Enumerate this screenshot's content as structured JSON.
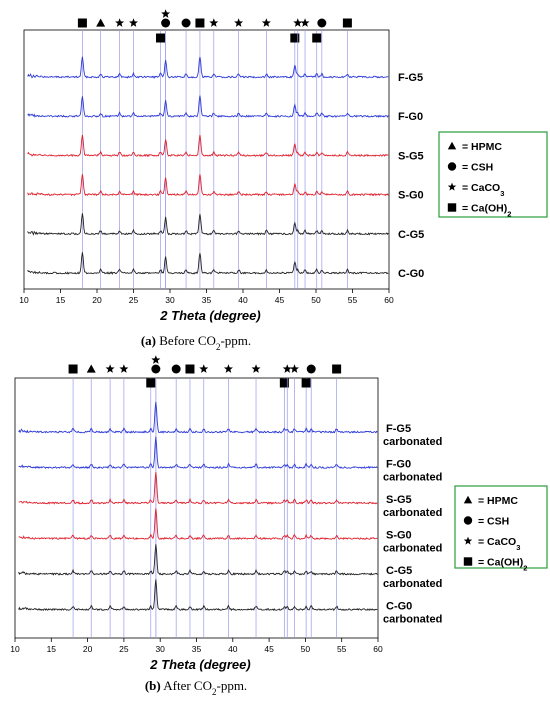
{
  "chart_data": [
    {
      "type": "line",
      "panel": "(a)",
      "caption_label": "(a)",
      "caption_text": " Before CO",
      "caption_sub": "2",
      "caption_tail": "-ppm.",
      "xlabel": "2 Theta (degree)",
      "xlim": [
        10,
        60
      ],
      "xticks": [
        10,
        15,
        20,
        25,
        30,
        35,
        40,
        45,
        50,
        55,
        60
      ],
      "series": [
        {
          "name": "F-G5",
          "color": "#2e3ad6"
        },
        {
          "name": "F-G0",
          "color": "#2e3ad6"
        },
        {
          "name": "S-G5",
          "color": "#e0202c"
        },
        {
          "name": "S-G0",
          "color": "#e0202c"
        },
        {
          "name": "C-G5",
          "color": "#222222"
        },
        {
          "name": "C-G0",
          "color": "#222222"
        }
      ],
      "peaks": [
        18.0,
        29.4,
        34.1,
        47.1
      ],
      "reference_lines": [
        {
          "x": 18.0,
          "marker": "square",
          "row": 0
        },
        {
          "x": 20.5,
          "marker": "triangle",
          "row": 0
        },
        {
          "x": 23.1,
          "marker": "star",
          "row": 0
        },
        {
          "x": 25.0,
          "marker": "star",
          "row": 0
        },
        {
          "x": 28.7,
          "marker": "square",
          "row": 1
        },
        {
          "x": 29.4,
          "marker": "circle",
          "row": 0
        },
        {
          "x": 29.4,
          "marker": "star",
          "row": -1
        },
        {
          "x": 32.2,
          "marker": "circle",
          "row": 0
        },
        {
          "x": 34.1,
          "marker": "square",
          "row": 0
        },
        {
          "x": 36.0,
          "marker": "star",
          "row": 0
        },
        {
          "x": 39.4,
          "marker": "star",
          "row": 0
        },
        {
          "x": 43.2,
          "marker": "star",
          "row": 0
        },
        {
          "x": 47.1,
          "marker": "square",
          "row": 1
        },
        {
          "x": 47.5,
          "marker": "star",
          "row": 0
        },
        {
          "x": 48.5,
          "marker": "star",
          "row": 0
        },
        {
          "x": 50.1,
          "marker": "square",
          "row": 1
        },
        {
          "x": 50.8,
          "marker": "circle",
          "row": 0
        },
        {
          "x": 54.3,
          "marker": "square",
          "row": 0
        }
      ],
      "legend": {
        "placement": "right",
        "border_color": "#2a9d3a",
        "items": [
          {
            "marker": "triangle",
            "label": "= HPMC"
          },
          {
            "marker": "circle",
            "label": "= CSH"
          },
          {
            "marker": "star",
            "label": "= CaCO",
            "sub": "3"
          },
          {
            "marker": "square",
            "label": "= Ca(OH)",
            "sub": "2"
          }
        ]
      }
    },
    {
      "type": "line",
      "panel": "(b)",
      "caption_label": "(b)",
      "caption_text": " After CO",
      "caption_sub": "2",
      "caption_tail": "-ppm.",
      "xlabel": "2 Theta (degree)",
      "xlim": [
        10,
        60
      ],
      "xticks": [
        10,
        15,
        20,
        25,
        30,
        35,
        40,
        45,
        50,
        55,
        60
      ],
      "series": [
        {
          "name": "F-G5",
          "label2": "carbonated",
          "color": "#2e3ad6"
        },
        {
          "name": "F-G0",
          "label2": "carbonated",
          "color": "#2e3ad6"
        },
        {
          "name": "S-G5",
          "label2": "carbonated",
          "color": "#e0202c"
        },
        {
          "name": "S-G0",
          "label2": "carbonated",
          "color": "#e0202c"
        },
        {
          "name": "C-G5",
          "label2": "carbonated",
          "color": "#222222"
        },
        {
          "name": "C-G0",
          "label2": "carbonated",
          "color": "#222222"
        }
      ],
      "peaks": [
        29.4
      ],
      "reference_lines": [
        {
          "x": 18.0,
          "marker": "square",
          "row": 0
        },
        {
          "x": 20.5,
          "marker": "triangle",
          "row": 0
        },
        {
          "x": 23.1,
          "marker": "star",
          "row": 0
        },
        {
          "x": 25.0,
          "marker": "star",
          "row": 0
        },
        {
          "x": 28.7,
          "marker": "square",
          "row": 1
        },
        {
          "x": 29.4,
          "marker": "circle",
          "row": 0
        },
        {
          "x": 29.4,
          "marker": "star",
          "row": -1
        },
        {
          "x": 32.2,
          "marker": "circle",
          "row": 0
        },
        {
          "x": 34.1,
          "marker": "square",
          "row": 0
        },
        {
          "x": 36.0,
          "marker": "star",
          "row": 0
        },
        {
          "x": 39.4,
          "marker": "star",
          "row": 0
        },
        {
          "x": 43.2,
          "marker": "star",
          "row": 0
        },
        {
          "x": 47.1,
          "marker": "square",
          "row": 1
        },
        {
          "x": 47.5,
          "marker": "star",
          "row": 0
        },
        {
          "x": 48.5,
          "marker": "star",
          "row": 0
        },
        {
          "x": 50.1,
          "marker": "square",
          "row": 1
        },
        {
          "x": 50.8,
          "marker": "circle",
          "row": 0
        },
        {
          "x": 54.3,
          "marker": "square",
          "row": 0
        }
      ],
      "legend": {
        "placement": "right",
        "border_color": "#2a9d3a",
        "items": [
          {
            "marker": "triangle",
            "label": "= HPMC"
          },
          {
            "marker": "circle",
            "label": "= CSH"
          },
          {
            "marker": "star",
            "label": "= CaCO",
            "sub": "3"
          },
          {
            "marker": "square",
            "label": "= Ca(OH)",
            "sub": "2"
          }
        ]
      }
    }
  ]
}
